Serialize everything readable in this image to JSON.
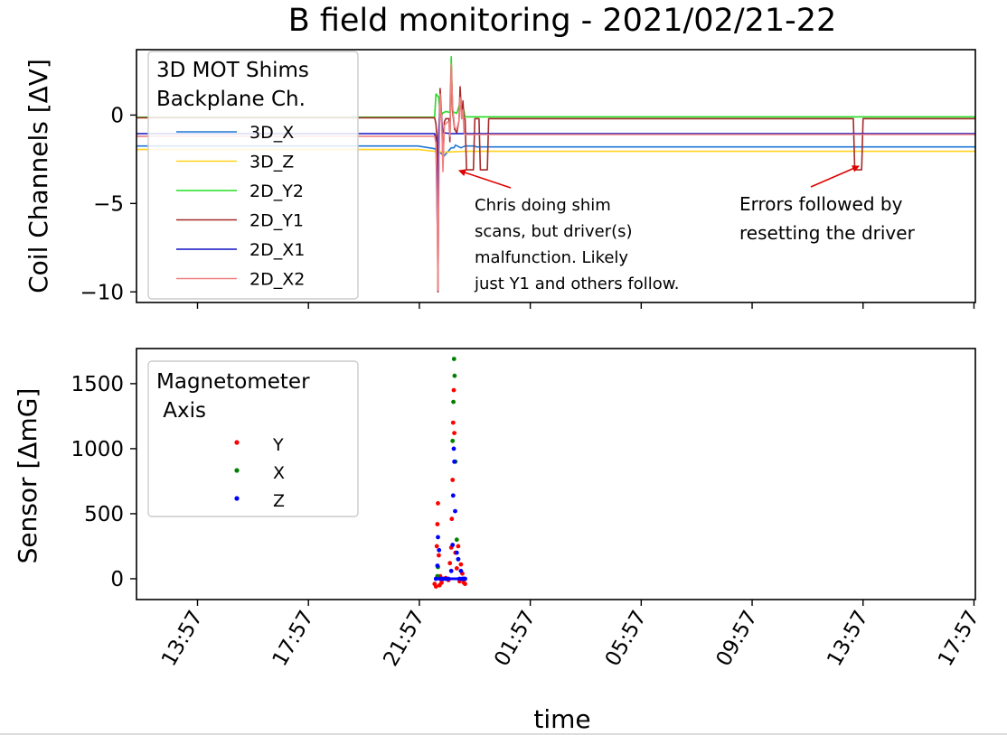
{
  "chart_data": {
    "type": "line",
    "title": "B field monitoring - 2021/02/21-22",
    "xlabel": "time",
    "x_ticks": [
      "13:57",
      "17:57",
      "21:57",
      "01:57",
      "05:57",
      "09:57",
      "13:57",
      "17:57"
    ],
    "x_tick_hours": [
      13.95,
      17.95,
      21.95,
      25.95,
      29.95,
      33.95,
      37.95,
      41.95
    ],
    "xlim_hours": [
      11.75,
      42.0
    ],
    "panels": [
      {
        "id": "top",
        "type": "line",
        "ylabel": "Coil Channels [ΔV]",
        "ylim": [
          -10.6,
          3.7
        ],
        "yticks": [
          0,
          -5,
          -10
        ],
        "ytick_labels": [
          "0",
          "−5",
          "−10"
        ],
        "legend": {
          "title": [
            "3D MOT Shims",
            "Backplane Ch."
          ],
          "position": "upper-left"
        },
        "series": [
          {
            "name": "3D_X",
            "color": "#1f77d4",
            "points": [
              [
                11.75,
                -1.75
              ],
              [
                21.9,
                -1.75
              ],
              [
                22.5,
                -1.9
              ],
              [
                22.85,
                -2.3
              ],
              [
                23.1,
                -1.85
              ],
              [
                23.2,
                -1.85
              ],
              [
                23.25,
                -1.7
              ],
              [
                23.45,
                -1.85
              ],
              [
                23.6,
                -1.75
              ],
              [
                23.95,
                -1.75
              ],
              [
                24.0,
                -1.8
              ],
              [
                42.0,
                -1.8
              ]
            ]
          },
          {
            "name": "3D_Z",
            "color": "#ffd21f",
            "points": [
              [
                11.75,
                -1.95
              ],
              [
                21.9,
                -1.95
              ],
              [
                22.5,
                -2.05
              ],
              [
                22.85,
                -2.1
              ],
              [
                23.6,
                -2.05
              ],
              [
                42.0,
                -2.05
              ]
            ]
          },
          {
            "name": "2D_Y2",
            "color": "#22dd22",
            "points": [
              [
                11.75,
                -0.12
              ],
              [
                22.5,
                -0.12
              ],
              [
                22.55,
                1.2
              ],
              [
                22.65,
                1.0
              ],
              [
                22.72,
                -0.1
              ],
              [
                22.78,
                0.1
              ],
              [
                22.9,
                0.2
              ],
              [
                23.05,
                0.15
              ],
              [
                23.1,
                3.3
              ],
              [
                23.15,
                0.2
              ],
              [
                23.3,
                0.1
              ],
              [
                23.4,
                0.6
              ],
              [
                23.5,
                0.1
              ],
              [
                23.55,
                0.3
              ],
              [
                23.6,
                -0.1
              ],
              [
                42.0,
                -0.1
              ]
            ]
          },
          {
            "name": "2D_Y1",
            "color": "#a52a2a",
            "points": [
              [
                11.75,
                -0.15
              ],
              [
                22.5,
                -0.15
              ],
              [
                22.55,
                -0.5
              ],
              [
                22.58,
                -1.2
              ],
              [
                22.62,
                -10.0
              ],
              [
                22.66,
                -1.0
              ],
              [
                22.7,
                1.5
              ],
              [
                22.76,
                -0.3
              ],
              [
                22.8,
                -2.8
              ],
              [
                22.85,
                -0.4
              ],
              [
                22.9,
                -0.2
              ],
              [
                23.02,
                -0.2
              ],
              [
                23.05,
                -1.5
              ],
              [
                23.1,
                2.8
              ],
              [
                23.15,
                0.2
              ],
              [
                23.22,
                -0.8
              ],
              [
                23.3,
                -1.0
              ],
              [
                23.38,
                -0.3
              ],
              [
                23.42,
                1.6
              ],
              [
                23.48,
                -0.2
              ],
              [
                23.52,
                0.8
              ],
              [
                23.56,
                -0.2
              ],
              [
                23.6,
                -0.2
              ],
              [
                23.65,
                -3.1
              ],
              [
                23.9,
                -3.1
              ],
              [
                23.95,
                -0.2
              ],
              [
                24.1,
                -0.2
              ],
              [
                24.15,
                -3.1
              ],
              [
                24.4,
                -3.1
              ],
              [
                24.45,
                -0.2
              ],
              [
                37.6,
                -0.2
              ],
              [
                37.65,
                -3.1
              ],
              [
                37.9,
                -3.1
              ],
              [
                37.95,
                -0.2
              ],
              [
                42.0,
                -0.2
              ]
            ]
          },
          {
            "name": "2D_X1",
            "color": "#1010c0",
            "points": [
              [
                11.75,
                -1.05
              ],
              [
                22.5,
                -1.05
              ],
              [
                22.55,
                -1.4
              ],
              [
                22.6,
                -6.5
              ],
              [
                22.64,
                -1.2
              ],
              [
                22.7,
                0.5
              ],
              [
                22.8,
                -1.0
              ],
              [
                23.1,
                -1.05
              ],
              [
                23.6,
                -1.05
              ],
              [
                42.0,
                -1.05
              ]
            ]
          },
          {
            "name": "2D_X2",
            "color": "#f08080",
            "points": [
              [
                11.75,
                -1.2
              ],
              [
                22.5,
                -1.2
              ],
              [
                22.55,
                -1.6
              ],
              [
                22.58,
                -3.2
              ],
              [
                22.62,
                -9.9
              ],
              [
                22.66,
                -2.5
              ],
              [
                22.7,
                1.2
              ],
              [
                22.76,
                -0.6
              ],
              [
                22.8,
                -3.2
              ],
              [
                22.85,
                -0.6
              ],
              [
                22.95,
                -0.4
              ],
              [
                23.02,
                -0.4
              ],
              [
                23.05,
                -1.2
              ],
              [
                23.1,
                2.9
              ],
              [
                23.15,
                0.5
              ],
              [
                23.22,
                -0.7
              ],
              [
                23.3,
                -0.8
              ],
              [
                23.38,
                -0.3
              ],
              [
                23.42,
                1.0
              ],
              [
                23.48,
                -0.2
              ],
              [
                23.52,
                0.3
              ],
              [
                23.56,
                -1.0
              ],
              [
                23.6,
                -1.1
              ],
              [
                42.0,
                -1.1
              ]
            ]
          }
        ],
        "annotations": [
          {
            "lines": [
              "Chris doing shim",
              "scans, but driver(s)",
              "malfunction. Likely",
              "just Y1 and others follow."
            ],
            "arrow_to": [
              22.95,
              -3.1
            ],
            "arrow_color": "#e00000"
          },
          {
            "lines": [
              "Errors followed by",
              "resetting the driver"
            ],
            "arrow_to": [
              37.6,
              -2.9
            ],
            "arrow_color": "#e00000"
          }
        ]
      },
      {
        "id": "bottom",
        "type": "scatter",
        "ylabel": "Sensor [ΔmG]",
        "ylim": [
          -160,
          1770
        ],
        "yticks": [
          0,
          500,
          1000,
          1500
        ],
        "ytick_labels": [
          "0",
          "500",
          "1000",
          "1500"
        ],
        "legend": {
          "title": [
            "Magnetometer",
            " Axis"
          ],
          "position": "upper-left"
        },
        "series": [
          {
            "name": "Y",
            "color": "#ff0000",
            "marker_size": 2.4,
            "points": [
              [
                22.5,
                -40
              ],
              [
                22.55,
                -60
              ],
              [
                22.58,
                250
              ],
              [
                22.6,
                420
              ],
              [
                22.62,
                580
              ],
              [
                22.65,
                180
              ],
              [
                22.68,
                -50
              ],
              [
                22.7,
                20
              ],
              [
                22.75,
                -30
              ],
              [
                22.8,
                0
              ],
              [
                22.9,
                5
              ],
              [
                23.0,
                -10
              ],
              [
                23.05,
                120
              ],
              [
                23.1,
                240
              ],
              [
                23.12,
                460
              ],
              [
                23.15,
                760
              ],
              [
                23.17,
                1200
              ],
              [
                23.19,
                1450
              ],
              [
                23.21,
                1120
              ],
              [
                23.25,
                200
              ],
              [
                23.3,
                80
              ],
              [
                23.35,
                250
              ],
              [
                23.4,
                -20
              ],
              [
                23.45,
                110
              ],
              [
                23.5,
                40
              ],
              [
                23.55,
                -30
              ],
              [
                23.6,
                -40
              ]
            ]
          },
          {
            "name": "X",
            "color": "#008000",
            "marker_size": 2.4,
            "points": [
              [
                22.6,
                20
              ],
              [
                22.62,
                90
              ],
              [
                23.15,
                1060
              ],
              [
                23.18,
                1360
              ],
              [
                23.2,
                1690
              ],
              [
                23.22,
                1560
              ],
              [
                23.25,
                900
              ],
              [
                23.3,
                300
              ],
              [
                23.35,
                150
              ]
            ]
          },
          {
            "name": "Z",
            "color": "#0000ff",
            "marker_size": 2.4,
            "points": [
              [
                22.55,
                0
              ],
              [
                22.6,
                100
              ],
              [
                22.62,
                320
              ],
              [
                22.66,
                220
              ],
              [
                22.7,
                0
              ],
              [
                22.8,
                0
              ],
              [
                22.9,
                0
              ],
              [
                23.0,
                0
              ],
              [
                23.1,
                60
              ],
              [
                23.15,
                260
              ],
              [
                23.17,
                640
              ],
              [
                23.19,
                1000
              ],
              [
                23.21,
                900
              ],
              [
                23.24,
                520
              ],
              [
                23.3,
                200
              ],
              [
                23.35,
                150
              ],
              [
                23.4,
                0
              ],
              [
                23.45,
                60
              ],
              [
                23.5,
                0
              ],
              [
                23.55,
                0
              ],
              [
                23.6,
                0
              ]
            ]
          }
        ]
      }
    ]
  }
}
